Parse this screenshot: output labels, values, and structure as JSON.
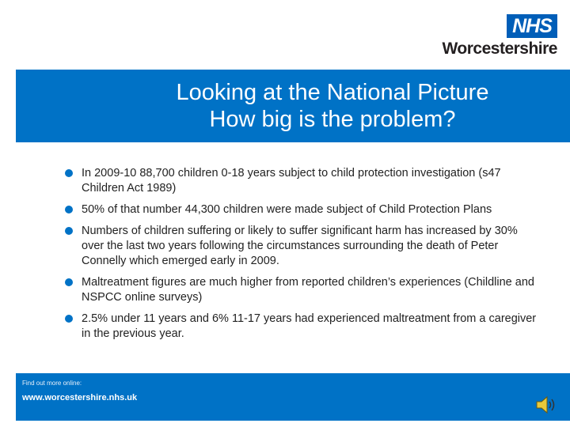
{
  "logo": {
    "badge": "NHS",
    "organisation": "Worcestershire"
  },
  "title": {
    "line1": "Looking at the National Picture",
    "line2": "How big is the problem?"
  },
  "bullets": [
    "In 2009-10 88,700 children 0-18 years subject to child protection investigation (s47 Children Act 1989)",
    "50% of that number 44,300 children were made subject of Child Protection Plans",
    "Numbers of children suffering or likely to suffer significant harm has increased by 30% over the last two years following the circumstances surrounding the death of Peter Connelly which emerged early in 2009.",
    "Maltreatment figures are much higher from reported children’s experiences (Childline and NSPCC online surveys)",
    "2.5% under 11 years and 6% 11-17 years had experienced maltreatment from a caregiver in the previous year."
  ],
  "footer": {
    "find_text": "Find out more online:",
    "url": "www.worcestershire.nhs.uk"
  },
  "icons": {
    "audio": "speaker-icon"
  },
  "colors": {
    "band": "#0072c6",
    "nhs_blue": "#005eb8",
    "text": "#222222"
  }
}
